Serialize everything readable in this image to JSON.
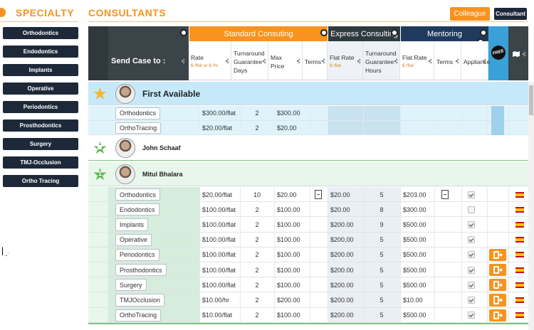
{
  "sidebar": {
    "title": "SPECIALTY",
    "items": [
      "Orthodontics",
      "Endodontics",
      "Implants",
      "Operative",
      "Periodontics",
      "Prosthodontics",
      "Surgery",
      "TMJ-Occlusion",
      "Ortho Tracing"
    ]
  },
  "header": {
    "title": "CONSULTANTS",
    "buttons": [
      "Colleague",
      "Consultant"
    ]
  },
  "table": {
    "send_case": "Send Case to :",
    "groups": [
      "Standard Consuting",
      "Express Consulting",
      "Mentoring"
    ],
    "free_badge": "FREE",
    "columns": [
      {
        "label": "Rate",
        "unit": "$ /flat or $ /hr"
      },
      {
        "label": "Turnaround Guarantee Days"
      },
      {
        "label": "Max Price"
      },
      {
        "label": "Terms"
      },
      {
        "label": "Flat Rate",
        "unit": "$ /flat"
      },
      {
        "label": "Turnaround Guarantee Hours"
      },
      {
        "label": "Flat Rate",
        "unit": "$ /flat"
      },
      {
        "label": "Terms"
      },
      {
        "label": "Appliance"
      }
    ],
    "consultants": [
      {
        "name": "First Available",
        "services": [
          {
            "specialty": "Orthodontics",
            "rate": "$300.00/flat",
            "days": 2,
            "max_price": "$300.00"
          },
          {
            "specialty": "OrthoTracing",
            "rate": "$20.00/flat",
            "days": 2,
            "max_price": "$20.00"
          }
        ]
      },
      {
        "name": "John Schaaf",
        "services": []
      },
      {
        "name": "Mitul Bhalara",
        "badge": "1",
        "services": [
          {
            "specialty": "Orthodontics",
            "rate": "$20.00/flat",
            "days": 10,
            "max_price": "$20.00",
            "terms": true,
            "express_rate": "$20.00",
            "express_hours": 5,
            "mentoring_rate": "$203.00",
            "mentoring_terms": true,
            "appliance": true,
            "action": false,
            "flag": true
          },
          {
            "specialty": "Endodontics",
            "rate": "$100.00/flat",
            "days": 2,
            "max_price": "$100.00",
            "express_rate": "$20.00",
            "express_hours": 8,
            "mentoring_rate": "$300.00",
            "appliance": false,
            "action": false,
            "flag": true
          },
          {
            "specialty": "Implants",
            "rate": "$100.00/flat",
            "days": 2,
            "max_price": "$100.00",
            "express_rate": "$200.00",
            "express_hours": 9,
            "mentoring_rate": "$500.00",
            "appliance": true,
            "action": false,
            "flag": true
          },
          {
            "specialty": "Operative",
            "rate": "$100.00/flat",
            "days": 2,
            "max_price": "$100.00",
            "express_rate": "$200.00",
            "express_hours": 5,
            "mentoring_rate": "$500.00",
            "appliance": true,
            "action": false,
            "flag": true
          },
          {
            "specialty": "Periodontics",
            "rate": "$100.00/flat",
            "days": 2,
            "max_price": "$100.00",
            "express_rate": "$200.00",
            "express_hours": 5,
            "mentoring_rate": "$500.00",
            "appliance": true,
            "action": true,
            "flag": true
          },
          {
            "specialty": "Prosthodontics",
            "rate": "$100.00/flat",
            "days": 2,
            "max_price": "$100.00",
            "express_rate": "$200.00",
            "express_hours": 5,
            "mentoring_rate": "$500.00",
            "appliance": true,
            "action": true,
            "flag": true
          },
          {
            "specialty": "Surgery",
            "rate": "$100.00/flat",
            "days": 2,
            "max_price": "$100.00",
            "express_rate": "$200.00",
            "express_hours": 5,
            "mentoring_rate": "$500.00",
            "appliance": true,
            "action": true,
            "flag": true
          },
          {
            "specialty": "TMJOcclusion",
            "rate": "$10.00/hr",
            "days": 2,
            "max_price": "$200.00",
            "express_rate": "$200.00",
            "express_hours": 5,
            "mentoring_rate": "$10.00",
            "appliance": true,
            "action": true,
            "flag": true
          },
          {
            "specialty": "OrthoTracing",
            "rate": "$10.00/flat",
            "days": 2,
            "max_price": "$100.00",
            "express_rate": "$200.00",
            "express_hours": 5,
            "mentoring_rate": "$500.00",
            "appliance": true,
            "action": true,
            "flag": true
          }
        ]
      }
    ]
  }
}
